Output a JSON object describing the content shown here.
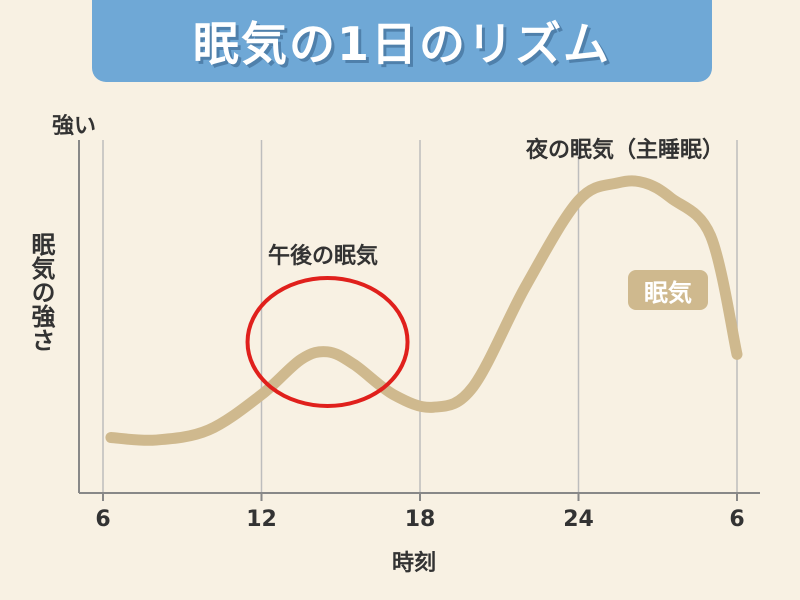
{
  "title": "眠気の1日のリズム",
  "chart_data": {
    "type": "line",
    "xlabel": "時刻",
    "ylabel": "眠気の強さ",
    "y_high_label": "強い",
    "ticks": [
      "6",
      "12",
      "18",
      "24",
      "6"
    ],
    "x_hours": [
      6,
      12,
      18,
      24,
      30
    ],
    "series": [
      {
        "name": "眠気",
        "color": "#cfb98e",
        "x": [
          6.3,
          8,
          10,
          12,
          13.5,
          14.5,
          15.5,
          17,
          18.5,
          20,
          22,
          24,
          25.5,
          26.5,
          27.5,
          29,
          30
        ],
        "y": [
          2.2,
          2.1,
          2.5,
          3.9,
          5.3,
          5.6,
          5.1,
          3.9,
          3.4,
          4.2,
          8.2,
          11.6,
          12.3,
          12.3,
          11.7,
          10.2,
          5.5
        ]
      }
    ],
    "ylim": [
      0,
      14
    ],
    "annotations": [
      {
        "text": "午後の眠気",
        "x": 14.5
      },
      {
        "text": "夜の眠気（主睡眠）",
        "x": 26.5
      }
    ],
    "highlight_circle_color": "#e0201c"
  }
}
